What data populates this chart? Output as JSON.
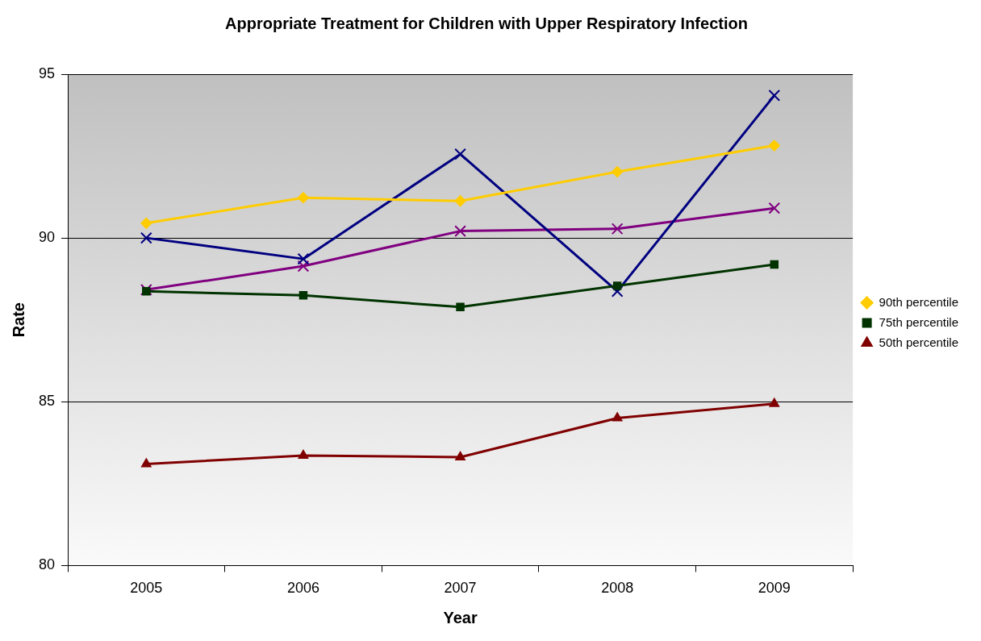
{
  "chart_data": {
    "type": "line",
    "title": "Appropriate Treatment for Children with Upper Respiratory Infection",
    "xlabel": "Year",
    "ylabel": "Rate",
    "categories": [
      "2005",
      "2006",
      "2007",
      "2008",
      "2009"
    ],
    "series": [
      {
        "name": "90th percentile",
        "color": "#ffcc00",
        "marker": "diamond",
        "values": [
          90.45,
          91.23,
          91.13,
          92.02,
          92.82
        ]
      },
      {
        "name": "75th percentile",
        "color": "#003300",
        "marker": "square",
        "values": [
          88.37,
          88.25,
          87.89,
          88.54,
          89.19
        ]
      },
      {
        "name": "50th percentile",
        "color": "#800000",
        "marker": "triangle",
        "values": [
          83.1,
          83.36,
          83.31,
          84.5,
          84.94
        ]
      },
      {
        "color": "#000080",
        "marker": "cross",
        "values": [
          90.0,
          89.36,
          92.56,
          88.37,
          94.35
        ]
      },
      {
        "color": "#800080",
        "marker": "cross",
        "values": [
          88.42,
          89.14,
          90.21,
          90.28,
          90.91
        ]
      }
    ],
    "ylim": [
      80,
      95
    ],
    "yticks": [
      80,
      85,
      90,
      95
    ],
    "grid": "y",
    "legend": "right",
    "line_style": "solid"
  }
}
